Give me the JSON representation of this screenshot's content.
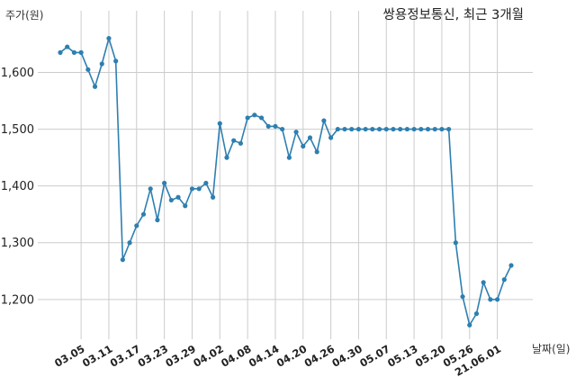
{
  "chart_data": {
    "type": "line",
    "title": "쌍용정보통신, 최근 3개월",
    "ylabel": "주가(원)",
    "xlabel": "날짜(일)",
    "ylim": [
      1130,
      1680
    ],
    "yticks": [
      1200,
      1300,
      1400,
      1500,
      1600
    ],
    "ytick_labels": [
      "1,200",
      "1,300",
      "1,400",
      "1,500",
      "1,600"
    ],
    "xtick_labels": [
      "03.05",
      "03.11",
      "03.17",
      "03.23",
      "03.29",
      "04.02",
      "04.08",
      "04.14",
      "04.20",
      "04.26",
      "04.30",
      "05.07",
      "05.13",
      "05.20",
      "05.26",
      "21.06.01"
    ],
    "xtick_indices": [
      3,
      7,
      11,
      15,
      19,
      23,
      27,
      31,
      35,
      39,
      43,
      47,
      51,
      55,
      59,
      63
    ],
    "grid": true,
    "line_color": "#2e7fb0",
    "series": [
      {
        "values": [
          1635,
          1645,
          1635,
          1635,
          1605,
          1575,
          1615,
          1660,
          1620,
          1270,
          1300,
          1330,
          1350,
          1395,
          1340,
          1405,
          1375,
          1380,
          1365,
          1395,
          1395,
          1405,
          1380,
          1510,
          1450,
          1480,
          1475,
          1520,
          1525,
          1520,
          1505,
          1505,
          1500,
          1450,
          1495,
          1470,
          1485,
          1460,
          1515,
          1485,
          1500,
          1500,
          1500,
          1500,
          1500,
          1500,
          1500,
          1500,
          1500,
          1500,
          1500,
          1500,
          1500,
          1500,
          1500,
          1500,
          1500,
          1300,
          1205,
          1155,
          1175,
          1230,
          1200,
          1200,
          1235,
          1260
        ]
      }
    ]
  }
}
